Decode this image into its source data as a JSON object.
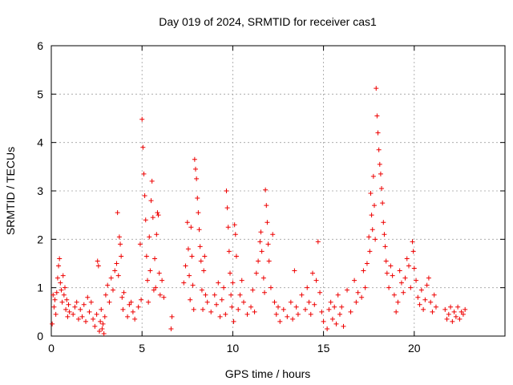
{
  "chart_data": {
    "type": "scatter",
    "title": "Day 019 of 2024, SRMTID for receiver cas1",
    "xlabel": "GPS time / hours",
    "ylabel": "SRMTID / TECUs",
    "xlim": [
      0,
      25
    ],
    "ylim": [
      0,
      6
    ],
    "xticks": [
      0,
      5,
      10,
      15,
      20
    ],
    "yticks": [
      0,
      1,
      2,
      3,
      4,
      5,
      6
    ],
    "grid": true,
    "marker": "+",
    "color": "#ee0000",
    "series": [
      {
        "name": "SRMTID",
        "points": [
          [
            0.05,
            0.25
          ],
          [
            0.1,
            0.85
          ],
          [
            0.15,
            0.6
          ],
          [
            0.2,
            0.75
          ],
          [
            0.25,
            0.45
          ],
          [
            0.3,
            0.9
          ],
          [
            0.35,
            1.2
          ],
          [
            0.4,
            1.45
          ],
          [
            0.45,
            1.6
          ],
          [
            0.5,
            1.1
          ],
          [
            0.55,
            0.95
          ],
          [
            0.6,
            0.7
          ],
          [
            0.65,
            1.25
          ],
          [
            0.7,
            0.85
          ],
          [
            0.75,
            1.0
          ],
          [
            0.8,
            0.55
          ],
          [
            0.85,
            0.75
          ],
          [
            0.9,
            0.4
          ],
          [
            0.95,
            0.65
          ],
          [
            1.0,
            0.5
          ],
          [
            1.2,
            0.45
          ],
          [
            1.3,
            0.6
          ],
          [
            1.4,
            0.7
          ],
          [
            1.5,
            0.35
          ],
          [
            1.6,
            0.55
          ],
          [
            1.7,
            0.4
          ],
          [
            1.8,
            0.65
          ],
          [
            1.9,
            0.3
          ],
          [
            2.0,
            0.8
          ],
          [
            2.1,
            0.5
          ],
          [
            2.2,
            0.7
          ],
          [
            2.3,
            0.35
          ],
          [
            2.4,
            0.2
          ],
          [
            2.5,
            0.45
          ],
          [
            2.55,
            1.55
          ],
          [
            2.6,
            1.45
          ],
          [
            2.65,
            0.1
          ],
          [
            2.7,
            0.3
          ],
          [
            2.75,
            0.55
          ],
          [
            2.8,
            0.15
          ],
          [
            2.85,
            0.25
          ],
          [
            2.9,
            0.05
          ],
          [
            2.95,
            0.4
          ],
          [
            3.0,
            0.85
          ],
          [
            3.1,
            1.05
          ],
          [
            3.2,
            0.7
          ],
          [
            3.3,
            1.2
          ],
          [
            3.4,
            0.95
          ],
          [
            3.5,
            1.35
          ],
          [
            3.6,
            1.5
          ],
          [
            3.65,
            2.55
          ],
          [
            3.7,
            1.25
          ],
          [
            3.75,
            2.05
          ],
          [
            3.8,
            1.9
          ],
          [
            3.85,
            1.65
          ],
          [
            3.9,
            0.8
          ],
          [
            3.95,
            0.55
          ],
          [
            4.0,
            0.9
          ],
          [
            4.2,
            0.4
          ],
          [
            4.3,
            0.65
          ],
          [
            4.4,
            0.7
          ],
          [
            4.5,
            0.5
          ],
          [
            4.6,
            0.35
          ],
          [
            4.8,
            0.6
          ],
          [
            4.9,
            1.9
          ],
          [
            4.95,
            0.75
          ],
          [
            5.0,
            4.48
          ],
          [
            5.05,
            3.9
          ],
          [
            5.1,
            3.35
          ],
          [
            5.15,
            2.9
          ],
          [
            5.2,
            2.4
          ],
          [
            5.25,
            1.65
          ],
          [
            5.3,
            1.15
          ],
          [
            5.35,
            0.7
          ],
          [
            5.4,
            2.05
          ],
          [
            5.45,
            1.35
          ],
          [
            5.5,
            2.8
          ],
          [
            5.55,
            3.2
          ],
          [
            5.6,
            2.45
          ],
          [
            5.65,
            0.95
          ],
          [
            5.7,
            1.6
          ],
          [
            5.75,
            1.0
          ],
          [
            5.8,
            2.1
          ],
          [
            5.85,
            2.55
          ],
          [
            5.9,
            2.5
          ],
          [
            5.95,
            1.3
          ],
          [
            6.0,
            0.85
          ],
          [
            6.1,
            1.15
          ],
          [
            6.2,
            0.8
          ],
          [
            6.6,
            0.15
          ],
          [
            6.65,
            0.4
          ],
          [
            7.3,
            1.1
          ],
          [
            7.4,
            1.45
          ],
          [
            7.5,
            2.35
          ],
          [
            7.55,
            1.8
          ],
          [
            7.6,
            1.25
          ],
          [
            7.65,
            0.75
          ],
          [
            7.7,
            2.25
          ],
          [
            7.75,
            1.65
          ],
          [
            7.8,
            1.05
          ],
          [
            7.85,
            0.55
          ],
          [
            7.9,
            3.65
          ],
          [
            7.95,
            3.45
          ],
          [
            8.0,
            3.25
          ],
          [
            8.05,
            2.85
          ],
          [
            8.1,
            2.55
          ],
          [
            8.15,
            2.2
          ],
          [
            8.2,
            1.85
          ],
          [
            8.25,
            1.55
          ],
          [
            8.3,
            0.95
          ],
          [
            8.35,
            0.55
          ],
          [
            8.4,
            1.35
          ],
          [
            8.45,
            1.65
          ],
          [
            8.5,
            0.85
          ],
          [
            8.6,
            0.7
          ],
          [
            8.8,
            0.5
          ],
          [
            9.0,
            0.85
          ],
          [
            9.1,
            0.65
          ],
          [
            9.2,
            1.1
          ],
          [
            9.3,
            0.4
          ],
          [
            9.4,
            0.75
          ],
          [
            9.5,
            1.0
          ],
          [
            9.6,
            0.45
          ],
          [
            9.65,
            3.0
          ],
          [
            9.7,
            2.65
          ],
          [
            9.75,
            2.25
          ],
          [
            9.8,
            1.75
          ],
          [
            9.85,
            1.3
          ],
          [
            9.9,
            0.85
          ],
          [
            9.95,
            0.6
          ],
          [
            10.0,
            1.1
          ],
          [
            10.05,
            0.3
          ],
          [
            10.1,
            2.3
          ],
          [
            10.15,
            2.1
          ],
          [
            10.2,
            1.65
          ],
          [
            10.3,
            0.55
          ],
          [
            10.4,
            0.85
          ],
          [
            10.5,
            1.15
          ],
          [
            10.6,
            0.7
          ],
          [
            10.8,
            0.45
          ],
          [
            11.0,
            0.6
          ],
          [
            11.1,
            0.95
          ],
          [
            11.2,
            0.5
          ],
          [
            11.3,
            1.3
          ],
          [
            11.4,
            1.55
          ],
          [
            11.5,
            1.95
          ],
          [
            11.55,
            2.15
          ],
          [
            11.6,
            1.75
          ],
          [
            11.7,
            1.2
          ],
          [
            11.75,
            0.9
          ],
          [
            11.8,
            3.02
          ],
          [
            11.85,
            2.7
          ],
          [
            11.9,
            2.35
          ],
          [
            11.95,
            1.9
          ],
          [
            12.0,
            1.55
          ],
          [
            12.1,
            1.0
          ],
          [
            12.2,
            2.1
          ],
          [
            12.3,
            0.7
          ],
          [
            12.4,
            0.45
          ],
          [
            12.5,
            0.6
          ],
          [
            12.6,
            0.3
          ],
          [
            12.8,
            0.55
          ],
          [
            13.0,
            0.4
          ],
          [
            13.2,
            0.7
          ],
          [
            13.3,
            0.35
          ],
          [
            13.4,
            1.35
          ],
          [
            13.5,
            0.6
          ],
          [
            13.6,
            0.45
          ],
          [
            13.8,
            0.85
          ],
          [
            14.0,
            0.55
          ],
          [
            14.1,
            1.0
          ],
          [
            14.2,
            0.7
          ],
          [
            14.3,
            0.45
          ],
          [
            14.4,
            1.3
          ],
          [
            14.5,
            0.65
          ],
          [
            14.6,
            1.15
          ],
          [
            14.7,
            1.95
          ],
          [
            14.8,
            0.9
          ],
          [
            14.9,
            0.5
          ],
          [
            15.0,
            0.3
          ],
          [
            15.2,
            0.15
          ],
          [
            15.3,
            0.55
          ],
          [
            15.4,
            0.7
          ],
          [
            15.5,
            0.35
          ],
          [
            15.6,
            0.6
          ],
          [
            15.7,
            0.25
          ],
          [
            15.8,
            0.85
          ],
          [
            15.9,
            0.45
          ],
          [
            16.0,
            0.6
          ],
          [
            16.1,
            0.2
          ],
          [
            16.3,
            0.95
          ],
          [
            16.5,
            0.5
          ],
          [
            16.7,
            1.15
          ],
          [
            16.8,
            0.7
          ],
          [
            16.9,
            0.9
          ],
          [
            17.1,
            0.8
          ],
          [
            17.2,
            1.35
          ],
          [
            17.3,
            1.0
          ],
          [
            17.4,
            1.5
          ],
          [
            17.5,
            2.05
          ],
          [
            17.55,
            1.75
          ],
          [
            17.6,
            2.95
          ],
          [
            17.65,
            2.5
          ],
          [
            17.7,
            2.2
          ],
          [
            17.75,
            3.3
          ],
          [
            17.8,
            2.7
          ],
          [
            17.85,
            2.0
          ],
          [
            17.9,
            5.12
          ],
          [
            17.95,
            4.55
          ],
          [
            18.0,
            4.2
          ],
          [
            18.05,
            3.85
          ],
          [
            18.1,
            3.55
          ],
          [
            18.15,
            3.35
          ],
          [
            18.2,
            3.05
          ],
          [
            18.25,
            2.75
          ],
          [
            18.3,
            2.35
          ],
          [
            18.35,
            2.1
          ],
          [
            18.4,
            1.85
          ],
          [
            18.45,
            1.55
          ],
          [
            18.5,
            1.3
          ],
          [
            18.6,
            1.0
          ],
          [
            18.7,
            1.45
          ],
          [
            18.8,
            1.25
          ],
          [
            18.9,
            0.85
          ],
          [
            19.0,
            0.5
          ],
          [
            19.1,
            0.7
          ],
          [
            19.2,
            1.35
          ],
          [
            19.3,
            1.1
          ],
          [
            19.4,
            0.9
          ],
          [
            19.5,
            1.2
          ],
          [
            19.6,
            1.6
          ],
          [
            19.7,
            1.45
          ],
          [
            19.8,
            1.0
          ],
          [
            19.9,
            1.95
          ],
          [
            19.95,
            1.75
          ],
          [
            20.0,
            1.4
          ],
          [
            20.1,
            1.15
          ],
          [
            20.2,
            0.8
          ],
          [
            20.3,
            0.65
          ],
          [
            20.4,
            0.95
          ],
          [
            20.5,
            0.55
          ],
          [
            20.6,
            0.75
          ],
          [
            20.7,
            1.05
          ],
          [
            20.8,
            1.2
          ],
          [
            20.9,
            0.7
          ],
          [
            21.0,
            0.5
          ],
          [
            21.1,
            0.85
          ],
          [
            21.2,
            0.6
          ],
          [
            21.7,
            0.55
          ],
          [
            21.8,
            0.35
          ],
          [
            21.9,
            0.45
          ],
          [
            22.0,
            0.6
          ],
          [
            22.1,
            0.3
          ],
          [
            22.2,
            0.5
          ],
          [
            22.3,
            0.4
          ],
          [
            22.4,
            0.6
          ],
          [
            22.5,
            0.35
          ],
          [
            22.6,
            0.5
          ],
          [
            22.7,
            0.45
          ],
          [
            22.8,
            0.55
          ]
        ]
      }
    ]
  }
}
